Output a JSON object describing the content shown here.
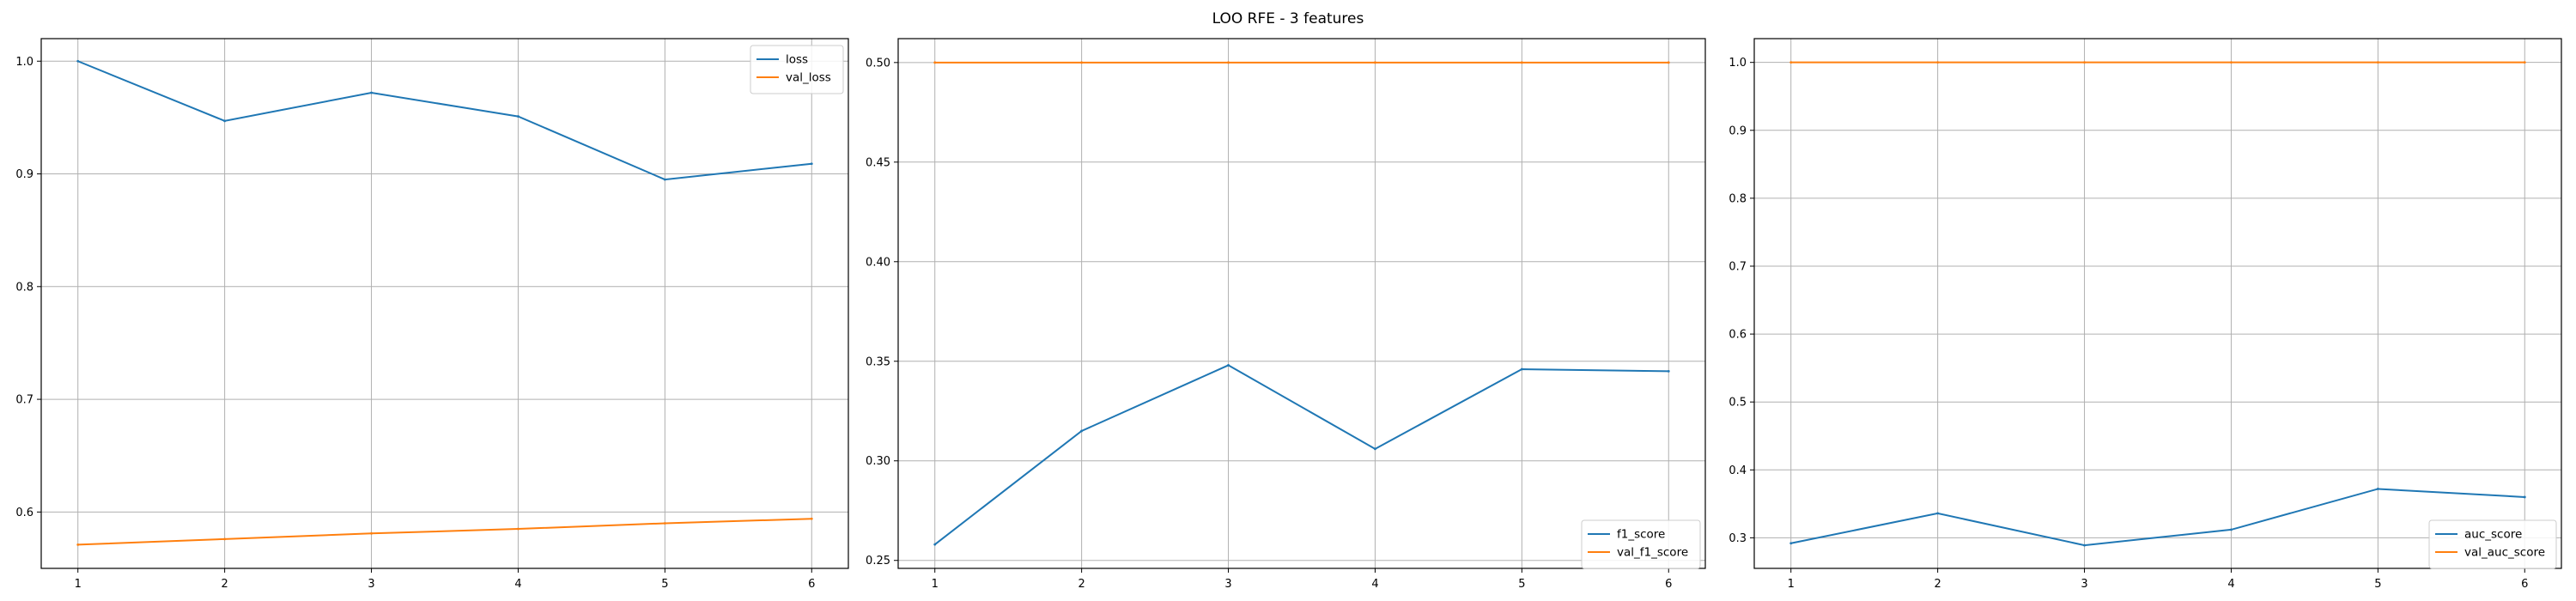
{
  "figure": {
    "title": "LOO RFE - 3 features"
  },
  "chart_data": [
    {
      "type": "line",
      "x": [
        1,
        2,
        3,
        4,
        5,
        6
      ],
      "series": [
        {
          "name": "loss",
          "color": "#1f77b4",
          "values": [
            1.0,
            0.947,
            0.972,
            0.951,
            0.895,
            0.909
          ]
        },
        {
          "name": "val_loss",
          "color": "#ff7f0e",
          "values": [
            0.571,
            0.576,
            0.581,
            0.585,
            0.59,
            0.594
          ]
        }
      ],
      "xticks": [
        "1",
        "2",
        "3",
        "4",
        "5",
        "6"
      ],
      "yticks": [
        "0.6",
        "0.7",
        "0.8",
        "0.9",
        "1.0"
      ],
      "xlim": [
        0.75,
        6.25
      ],
      "ylim": [
        0.55,
        1.02
      ],
      "grid": true,
      "legend": "upper right"
    },
    {
      "type": "line",
      "x": [
        1,
        2,
        3,
        4,
        5,
        6
      ],
      "series": [
        {
          "name": "f1_score",
          "color": "#1f77b4",
          "values": [
            0.258,
            0.315,
            0.348,
            0.306,
            0.346,
            0.345
          ]
        },
        {
          "name": "val_f1_score",
          "color": "#ff7f0e",
          "values": [
            0.5,
            0.5,
            0.5,
            0.5,
            0.5,
            0.5
          ]
        }
      ],
      "xticks": [
        "1",
        "2",
        "3",
        "4",
        "5",
        "6"
      ],
      "yticks": [
        "0.25",
        "0.30",
        "0.35",
        "0.40",
        "0.45",
        "0.50"
      ],
      "xlim": [
        0.75,
        6.25
      ],
      "ylim": [
        0.246,
        0.512
      ],
      "grid": true,
      "legend": "lower right"
    },
    {
      "type": "line",
      "x": [
        1,
        2,
        3,
        4,
        5,
        6
      ],
      "series": [
        {
          "name": "auc_score",
          "color": "#1f77b4",
          "values": [
            0.292,
            0.336,
            0.289,
            0.312,
            0.372,
            0.36
          ]
        },
        {
          "name": "val_auc_score",
          "color": "#ff7f0e",
          "values": [
            1.0,
            1.0,
            1.0,
            1.0,
            1.0,
            1.0
          ]
        }
      ],
      "xticks": [
        "1",
        "2",
        "3",
        "4",
        "5",
        "6"
      ],
      "yticks": [
        "0.3",
        "0.4",
        "0.5",
        "0.6",
        "0.7",
        "0.8",
        "0.9",
        "1.0"
      ],
      "xlim": [
        0.75,
        6.25
      ],
      "ylim": [
        0.255,
        1.035
      ],
      "grid": true,
      "legend": "lower right"
    }
  ]
}
